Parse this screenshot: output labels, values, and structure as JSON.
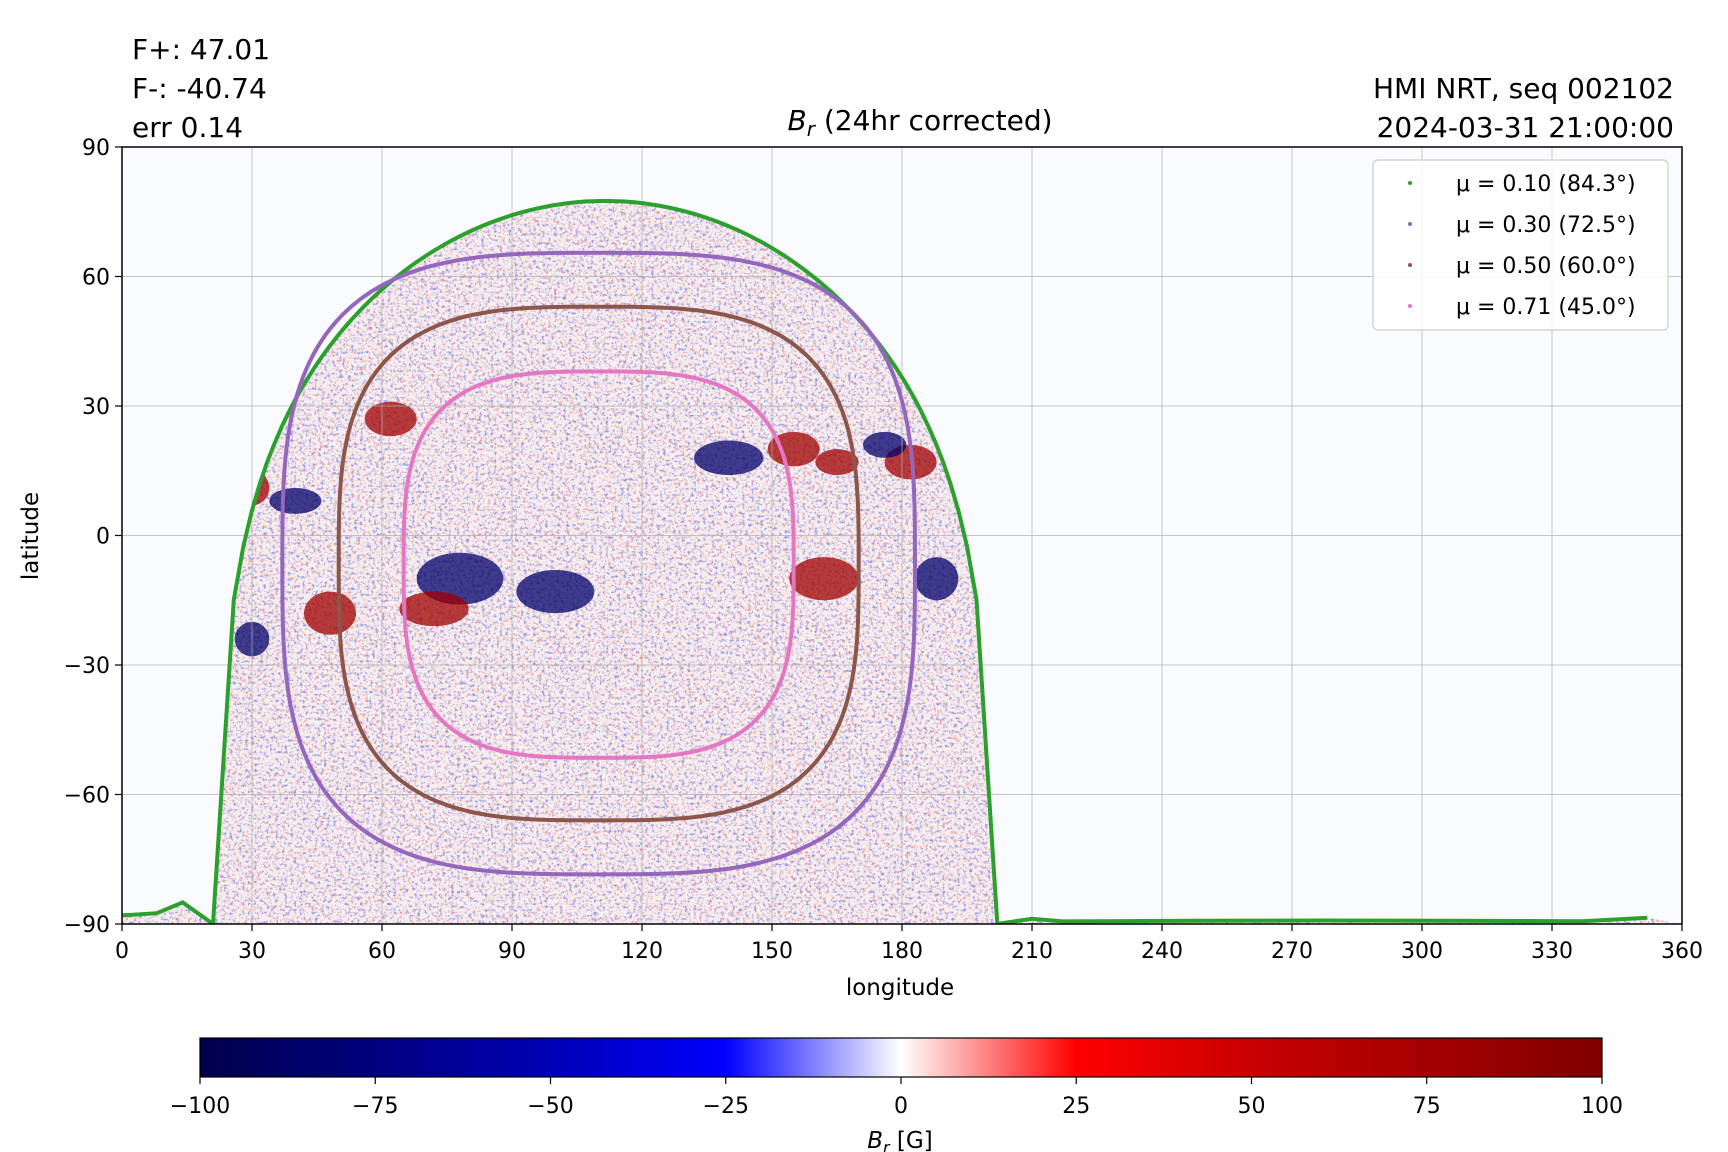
{
  "header": {
    "flux_pos": "F+: 47.01",
    "flux_neg": "F-: -40.74",
    "err": "err 0.14",
    "source": "HMI NRT, seq 002102",
    "timestamp": "2024-03-31 21:00:00"
  },
  "chart_data": {
    "type": "heatmap",
    "title_symbol": "B",
    "title_sub": "r",
    "title_rest": " (24hr corrected)",
    "xlabel": "longitude",
    "ylabel": "latitude",
    "xlim": [
      0,
      360
    ],
    "ylim": [
      -90,
      90
    ],
    "xticks": [
      0,
      30,
      60,
      90,
      120,
      150,
      180,
      210,
      240,
      270,
      300,
      330,
      360
    ],
    "yticks": [
      -90,
      -60,
      -30,
      0,
      30,
      60,
      90
    ],
    "ytick_labels": [
      "−90",
      "−60",
      "−30",
      "0",
      "30",
      "60",
      "90"
    ],
    "grid": true,
    "legend_position": "top-right",
    "colormap": "seismic",
    "colorbar": {
      "range": [
        -100,
        100
      ],
      "ticks": [
        -100,
        -75,
        -50,
        -25,
        0,
        25,
        50,
        75,
        100
      ],
      "tick_labels": [
        "−100",
        "−75",
        "−50",
        "−25",
        "0",
        "25",
        "50",
        "75",
        "100"
      ],
      "label_symbol": "B",
      "label_sub": "r",
      "label_unit": " [G]"
    },
    "series": [
      {
        "name": "μ = 0.10 (84.3°)",
        "color": "#2ca02c",
        "top_lat": 77.5,
        "bottom_lat": -90,
        "top_center_lon": 113,
        "top_left_lon": 31,
        "top_right_lon": 192,
        "bottom_left_lon": 21,
        "bottom_right_lon": 202,
        "far_side_lat_min": -89.5,
        "edge_lat": -88
      },
      {
        "name": "μ = 0.30 (72.5°)",
        "color": "#9467bd",
        "top_lat": 65.5,
        "bottom_lat": -78.5,
        "left_lon": 37,
        "right_lon": 183,
        "center_lon": 110
      },
      {
        "name": "μ = 0.50 (60.0°)",
        "color": "#8c564b",
        "top_lat": 53,
        "bottom_lat": -66,
        "left_lon": 50,
        "right_lon": 170,
        "center_lon": 110
      },
      {
        "name": "μ = 0.71 (45.0°)",
        "color": "#e377c2",
        "top_lat": 38,
        "bottom_lat": -51.5,
        "left_lon": 65,
        "right_lon": 155,
        "center_lon": 110
      }
    ]
  }
}
